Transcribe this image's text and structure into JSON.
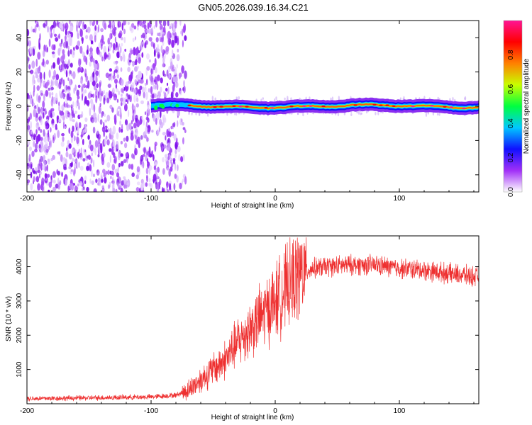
{
  "title": "GN05.2026.039.16.34.C21",
  "chart_data": [
    {
      "type": "heatmap",
      "title": "GN05.2026.039.16.34.C21",
      "xlabel": "Height of straight line (km)",
      "ylabel": "Frequency (Hz)",
      "xlim": [
        -200,
        164
      ],
      "ylim": [
        -50,
        50
      ],
      "x_ticks": [
        "-200",
        "-100",
        "0",
        "100"
      ],
      "y_ticks": [
        "40",
        "20",
        "0",
        "-20",
        "-40"
      ],
      "noise_region": {
        "x_from": -200,
        "x_to": -72,
        "description": "scattered purple speckle"
      },
      "signal_band": {
        "x_from": -100,
        "x_to": 164,
        "center_hz": 0,
        "half_width_hz": 3
      },
      "colorbar": {
        "label": "Normalized spectral amplitude",
        "range": [
          0,
          1
        ],
        "ticks": [
          "0.0",
          "0.2",
          "0.4",
          "0.6",
          "0.8"
        ],
        "colormap": [
          "#ffffff",
          "#a12ff7",
          "#1010ff",
          "#00c8ff",
          "#00ff40",
          "#c8ff00",
          "#ff8000",
          "#ff0000",
          "#ff1493"
        ]
      }
    },
    {
      "type": "line",
      "xlabel": "Height of straight line (km)",
      "ylabel": "SNR (10 * v/v)",
      "xlim": [
        -200,
        164
      ],
      "ylim": [
        0,
        4900
      ],
      "x_ticks": [
        "-200",
        "-100",
        "0",
        "100"
      ],
      "y_ticks": [
        "1000",
        "2000",
        "3000",
        "4000"
      ],
      "line_color": "#ee3030",
      "series": [
        {
          "name": "SNR",
          "x": [
            -200,
            -150,
            -100,
            -80,
            -70,
            -60,
            -50,
            -40,
            -30,
            -20,
            -10,
            0,
            10,
            20,
            30,
            40,
            60,
            80,
            100,
            120,
            140,
            164
          ],
          "y": [
            150,
            170,
            200,
            250,
            400,
            700,
            1000,
            1300,
            1800,
            2200,
            2600,
            3000,
            3400,
            3800,
            3950,
            4000,
            4050,
            4050,
            3950,
            3900,
            3800,
            3700
          ]
        }
      ]
    }
  ]
}
